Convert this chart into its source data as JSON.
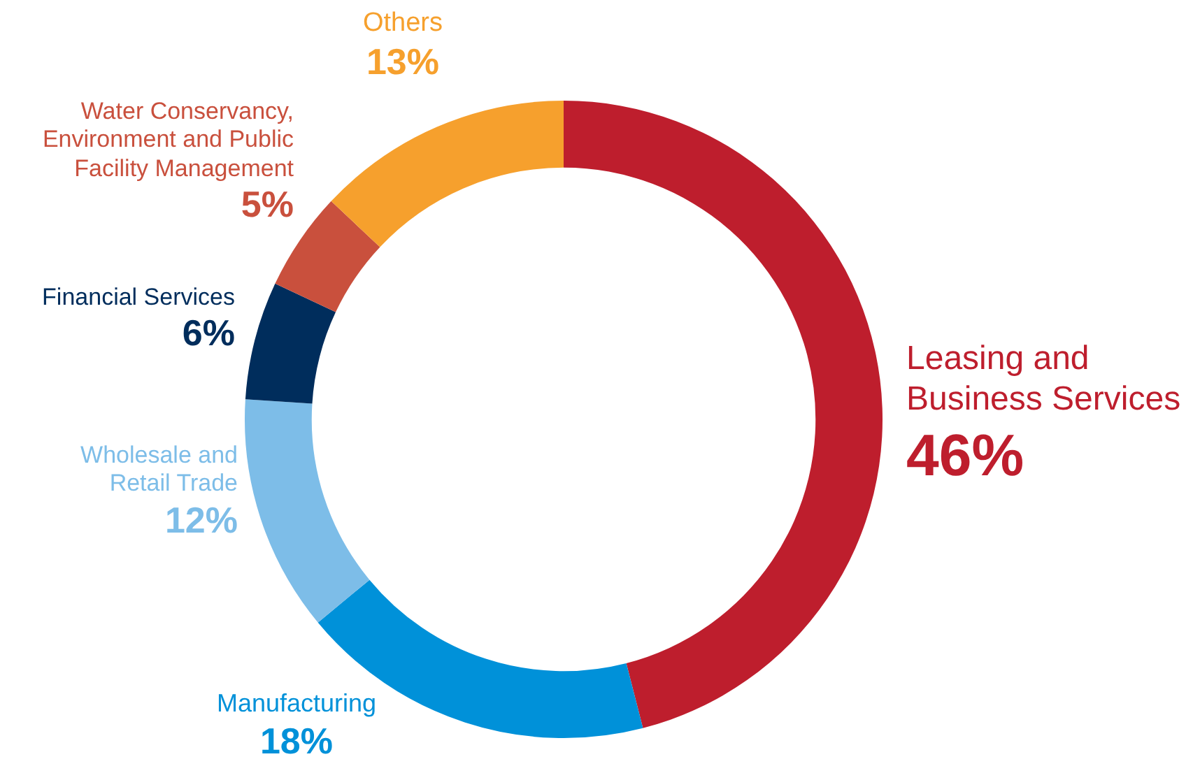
{
  "chart_data": {
    "type": "donut",
    "categories": [
      "Leasing and Business Services",
      "Manufacturing",
      "Wholesale and Retail Trade",
      "Financial Services",
      "Water Conservancy, Environment and Public Facility Management",
      "Others"
    ],
    "values": [
      46,
      18,
      12,
      6,
      5,
      13
    ],
    "colors": [
      "#be1e2d",
      "#0091d9",
      "#7dbde8",
      "#002d5c",
      "#c9503d",
      "#f6a02d"
    ],
    "value_labels": [
      "46%",
      "18%",
      "12%",
      "6%",
      "5%",
      "13%"
    ],
    "legend": false
  }
}
